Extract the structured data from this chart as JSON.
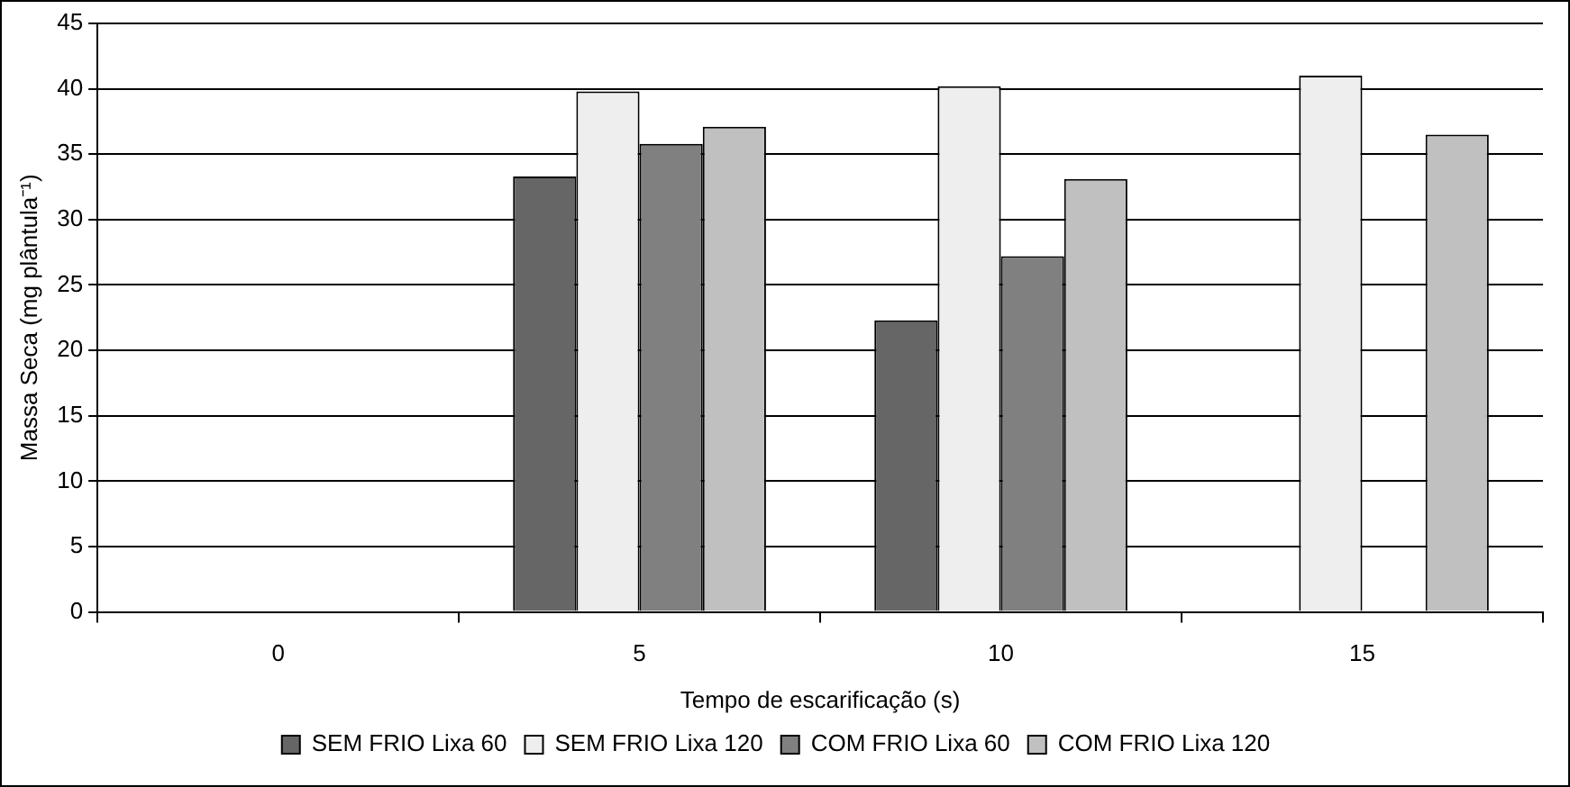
{
  "chart_data": {
    "type": "bar",
    "xlabel": "Tempo de escarificação (s)",
    "ylabel": "Massa Seca (mg plântula⁻¹)",
    "categories": [
      "0",
      "5",
      "10",
      "15"
    ],
    "series": [
      {
        "name": "SEM FRIO Lixa 60",
        "color": "#666666",
        "values": [
          null,
          33.3,
          22.3,
          null
        ]
      },
      {
        "name": "SEM FRIO Lixa 120",
        "color": "#eeeeee",
        "values": [
          null,
          39.8,
          40.2,
          41
        ]
      },
      {
        "name": "COM FRIO Lixa 60",
        "color": "#808080",
        "values": [
          null,
          35.8,
          27.2,
          null
        ]
      },
      {
        "name": "COM FRIO Lixa 120",
        "color": "#c0c0c0",
        "values": [
          null,
          37.1,
          33.1,
          36.5
        ]
      }
    ],
    "ylim": [
      0,
      45
    ],
    "yticks": [
      0,
      5,
      10,
      15,
      20,
      25,
      30,
      35,
      40,
      45
    ],
    "grid": "y",
    "legend": "bottom"
  }
}
